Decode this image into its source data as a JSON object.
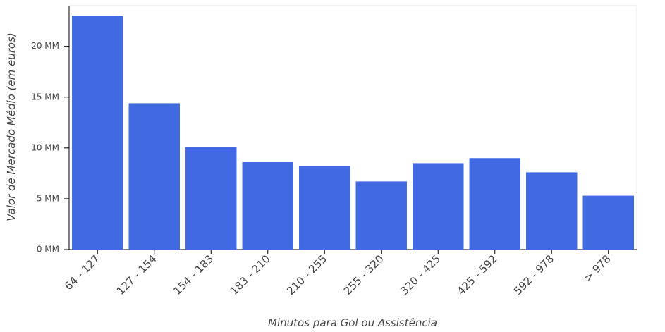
{
  "chart_data": {
    "type": "bar",
    "x_label": "Minutos para Gol ou Assistência",
    "y_label": "Valor de Mercado Médio (em euros)",
    "categories": [
      "64 - 127",
      "127 - 154",
      "154 - 183",
      "183 - 210",
      "210 - 255",
      "255 - 320",
      "320 - 425",
      "425 - 592",
      "592 - 978",
      "> 978"
    ],
    "values": [
      23000000,
      14400000,
      10100000,
      8600000,
      8200000,
      6700000,
      8500000,
      9000000,
      7600000,
      5300000
    ],
    "color": "#4169e1",
    "ylim": [
      0,
      24000000
    ],
    "yticks": [
      {
        "value": 0,
        "label": "0 MM"
      },
      {
        "value": 5000000,
        "label": "5 MM"
      },
      {
        "value": 10000000,
        "label": "10 MM"
      },
      {
        "value": 15000000,
        "label": "15 MM"
      },
      {
        "value": 20000000,
        "label": "20 MM"
      }
    ],
    "grid": false
  }
}
